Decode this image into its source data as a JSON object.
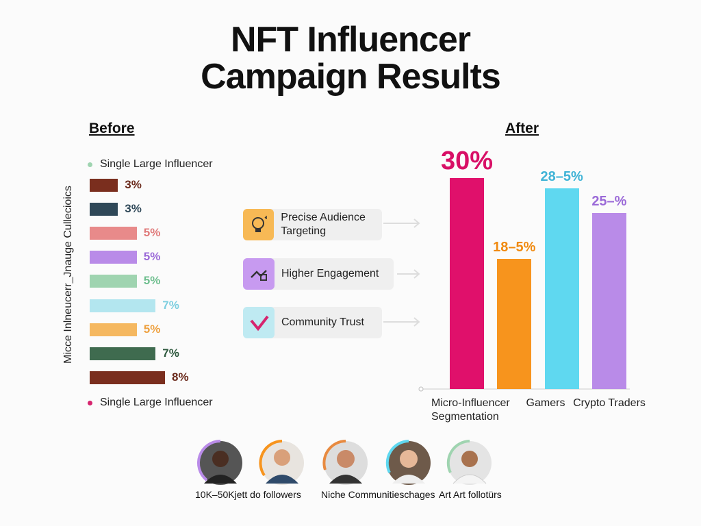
{
  "title_lines": [
    "NFT Influencer",
    "Campaign Results"
  ],
  "chart_data": [
    {
      "type": "bar",
      "orientation": "horizontal",
      "title": "Before",
      "ylabel": "Micce Inlneucerr_Jnauge Cullecioics",
      "values": [
        3,
        3,
        5,
        5,
        5,
        7,
        5,
        7,
        8
      ],
      "value_labels": [
        "3%",
        "3%",
        "5%",
        "5%",
        "5%",
        "7%",
        "5%",
        "7%",
        "8%"
      ],
      "colors": [
        "#7a2e1e",
        "#2f4858",
        "#e88a8a",
        "#b98be8",
        "#9fd4b0",
        "#b3e6ef",
        "#f5b860",
        "#3f6b4f",
        "#7a2e1e"
      ],
      "label_colors": [
        "#6b2a1c",
        "#2f4858",
        "#e07a7a",
        "#9b6ad8",
        "#6fbf8f",
        "#7fcfe0",
        "#eea140",
        "#2f5a3f",
        "#6b2a1c"
      ],
      "legend": [
        {
          "name": "Single Large Influencer",
          "color": "#9fd4b0"
        },
        {
          "name": "Single Large Influencer",
          "color": "#d6246e"
        }
      ]
    },
    {
      "type": "bar",
      "orientation": "vertical",
      "title": "After",
      "categories": [
        "Micro-Influencer Segmentation",
        null,
        "Gamers",
        "Crypto Traders"
      ],
      "values": [
        30,
        18.5,
        28.5,
        25
      ],
      "value_labels": [
        "30%",
        "18–5%",
        "28–5%",
        "25–%"
      ],
      "colors": [
        "#e0106b",
        "#f7941d",
        "#5fd8f0",
        "#b98be8"
      ],
      "label_colors": [
        "#d80f66",
        "#f08a10",
        "#3fb3d6",
        "#9b6ad8"
      ]
    }
  ],
  "features": [
    {
      "label": "Precise Audience Targeting",
      "color": "#f7b955"
    },
    {
      "label": "Higher Engagement",
      "color": "#c79af0"
    },
    {
      "label": "Community Trust",
      "color": "#bfeaf2"
    }
  ],
  "audience": {
    "captions": [
      "10K–50Kjett do followers",
      "Niche Communitieschages",
      "Art Art follotürs"
    ]
  }
}
